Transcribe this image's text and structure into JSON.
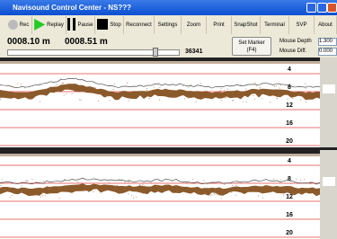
{
  "window": {
    "title": "Navisound Control Center - NS???"
  },
  "toolbar": {
    "buttons": [
      "Rec",
      "Replay",
      "Pause",
      "Stop",
      "Reconnect",
      "Settings",
      "Zoom",
      "Print",
      "SnapShot",
      "Terminal",
      "SVP",
      "About"
    ]
  },
  "readouts": {
    "depth_1": "0008.10 m",
    "depth_2": "0008.51 m",
    "counter": "36341",
    "set_marker": [
      "Set Marker",
      "(F4)"
    ],
    "mouse_depth_label": "Mouse Depth",
    "mouse_depth": "1.300",
    "mouse_diff_label": "Mouse Diff.",
    "mouse_diff": "0.000"
  },
  "echograms": [
    {
      "depth_labels": [
        4,
        8,
        12,
        16,
        20
      ]
    },
    {
      "depth_labels": [
        4,
        8,
        12,
        16,
        20
      ]
    }
  ]
}
